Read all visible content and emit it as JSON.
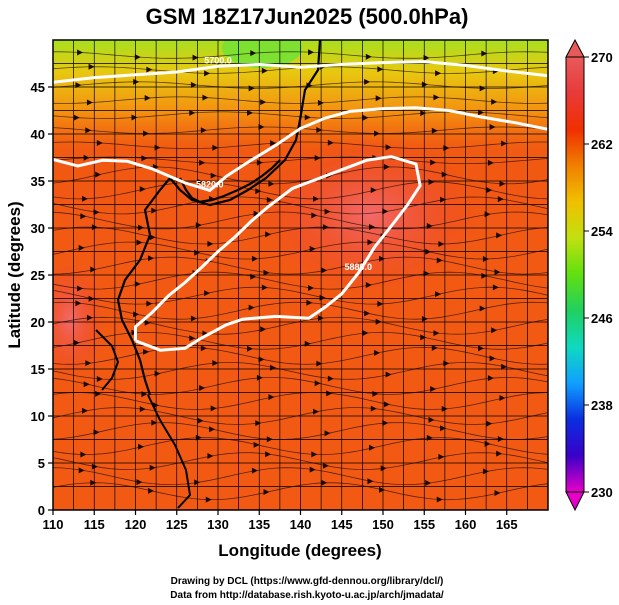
{
  "chart_data": {
    "type": "heatmap",
    "title": "GSM 18Z17Jun2025 (500.0hPa)",
    "xlabel": "Longitude (degrees)",
    "ylabel": "Latitude (degrees)",
    "xlim": [
      110,
      170
    ],
    "ylim": [
      0,
      50
    ],
    "x_ticks": [
      110,
      115,
      120,
      125,
      130,
      135,
      140,
      145,
      150,
      155,
      160,
      165
    ],
    "y_ticks": [
      0,
      5,
      10,
      15,
      20,
      25,
      30,
      35,
      40,
      45
    ],
    "grid": true,
    "colorbar": {
      "range": [
        230,
        270
      ],
      "ticks": [
        230,
        238,
        246,
        254,
        262,
        270
      ],
      "colors": [
        "#e600c8",
        "#3a00c8",
        "#0a2ee0",
        "#10a0ff",
        "#10d8c0",
        "#20d060",
        "#60e010",
        "#c0e010",
        "#f0c000",
        "#f08000",
        "#f03000",
        "#e83a3a",
        "#e85a5a"
      ]
    },
    "contours": [
      {
        "label": "5700.0",
        "points": [
          [
            110,
            45.5
          ],
          [
            115,
            46.0
          ],
          [
            120,
            46.3
          ],
          [
            125,
            46.6
          ],
          [
            130,
            47.2
          ],
          [
            135,
            47.4
          ],
          [
            140,
            47.1
          ],
          [
            145,
            47.4
          ],
          [
            150,
            47.6
          ],
          [
            155,
            47.7
          ],
          [
            160,
            47.3
          ],
          [
            165,
            46.7
          ],
          [
            170,
            46.2
          ]
        ]
      },
      {
        "label": "5820.0",
        "points": [
          [
            110,
            37.3
          ],
          [
            113,
            36.6
          ],
          [
            116,
            37.2
          ],
          [
            119,
            37.1
          ],
          [
            122,
            36.3
          ],
          [
            126,
            34.8
          ],
          [
            129,
            34.0
          ],
          [
            131,
            35.5
          ],
          [
            134,
            37.2
          ],
          [
            137,
            38.8
          ],
          [
            140,
            40.6
          ],
          [
            143,
            41.7
          ],
          [
            146,
            42.4
          ],
          [
            150,
            42.7
          ],
          [
            154,
            42.8
          ],
          [
            158,
            42.5
          ],
          [
            162,
            41.8
          ],
          [
            166,
            41.2
          ],
          [
            170,
            40.5
          ]
        ]
      },
      {
        "label": "5880.0",
        "points": [
          [
            120,
            18.0
          ],
          [
            123,
            17.0
          ],
          [
            126,
            17.2
          ],
          [
            128,
            18.3
          ],
          [
            131,
            19.7
          ],
          [
            133,
            20.3
          ],
          [
            137,
            20.6
          ],
          [
            141,
            20.4
          ],
          [
            143,
            21.6
          ],
          [
            145,
            23.0
          ],
          [
            147,
            25.2
          ],
          [
            149,
            28.0
          ],
          [
            151,
            30.2
          ],
          [
            153,
            32.5
          ],
          [
            154.5,
            34.5
          ],
          [
            154,
            36.8
          ],
          [
            151,
            37.6
          ],
          [
            148,
            37.2
          ],
          [
            145,
            36.2
          ],
          [
            142,
            35.2
          ],
          [
            139,
            34.2
          ],
          [
            136,
            32.2
          ],
          [
            134,
            30.7
          ],
          [
            132,
            29.0
          ],
          [
            130,
            27.5
          ],
          [
            128,
            25.8
          ],
          [
            126,
            24.2
          ],
          [
            124,
            22.8
          ],
          [
            122,
            21.0
          ],
          [
            120,
            19.5
          ],
          [
            120,
            18.0
          ]
        ]
      }
    ],
    "credits": [
      "Drawing by DCL (https://www.gfd-dennou.org/library/dcl/)",
      "Data from http://database.rish.kyoto-u.ac.jp/arch/jmadata/"
    ]
  }
}
